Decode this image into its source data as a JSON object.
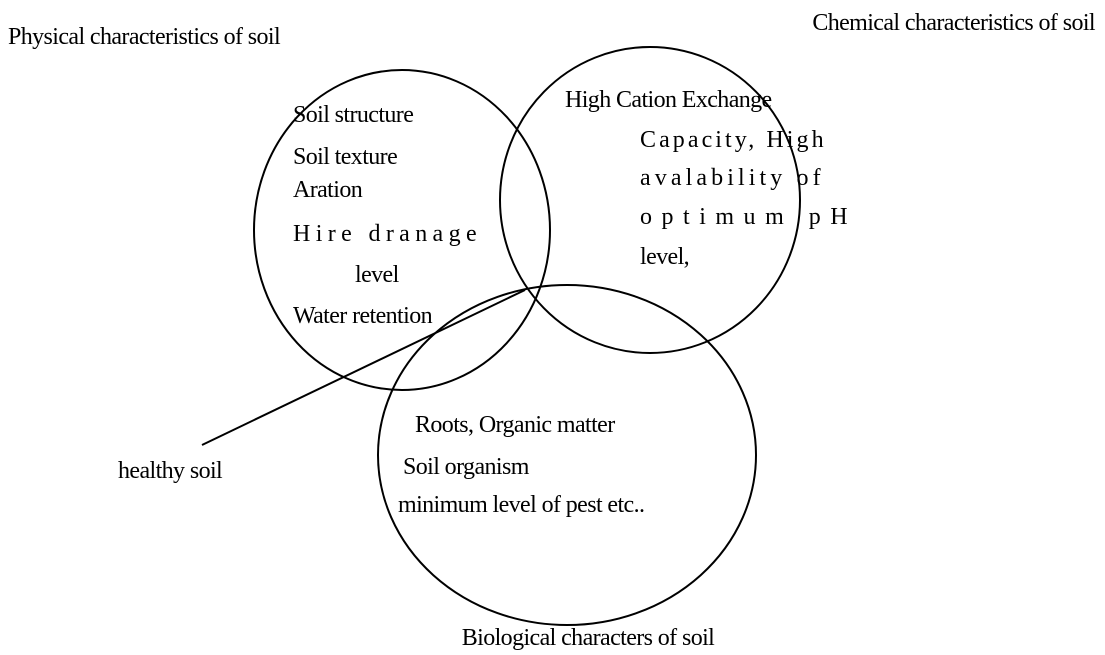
{
  "circles": [
    {
      "label": "Physical characteristics of soil",
      "items": [
        "Soil structure",
        "Soil texture",
        "Aration",
        "Hire dranage",
        "level",
        "Water retention"
      ]
    },
    {
      "label": "Chemical characteristics of soil",
      "items": [
        "High Cation Exchange",
        "Capacity, High",
        "avalability of",
        "optimum pH",
        "level,"
      ]
    },
    {
      "label": "Biological characters of soil",
      "items": [
        "Roots, Organic matter",
        "Soil organism",
        "minimum level of pest etc.."
      ]
    }
  ],
  "pointer": {
    "label": "healthy soil"
  }
}
